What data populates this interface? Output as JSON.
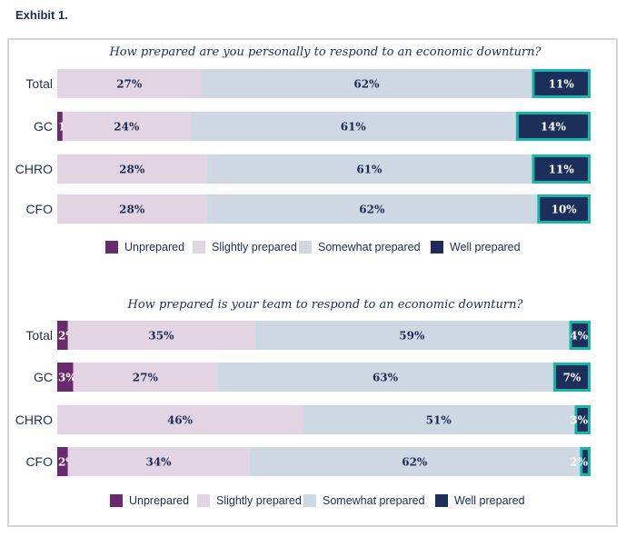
{
  "exhibit_title": "Exhibit 1.",
  "colors": {
    "unprepared": "#6b2a6e",
    "slightly": "#e3d4e4",
    "somewhat": "#cdd8e2",
    "well": "#1b2f5a",
    "well_outline": "#19b5ab",
    "text_dark": "#1c2d54",
    "text_light": "#ffffff"
  },
  "chart_data": [
    {
      "type": "bar",
      "orientation": "horizontal",
      "stacked": true,
      "title": "How prepared are you personally to respond to an economic downturn?",
      "categories": [
        "Total",
        "GC",
        "CHRO",
        "CFO"
      ],
      "series": [
        {
          "name": "Unprepared",
          "key": "unprepared",
          "values": [
            0,
            1,
            0,
            0
          ]
        },
        {
          "name": "Slightly prepared",
          "key": "slightly",
          "values": [
            27,
            24,
            28,
            28
          ]
        },
        {
          "name": "Somewhat prepared",
          "key": "somewhat",
          "values": [
            62,
            61,
            61,
            62
          ]
        },
        {
          "name": "Well prepared",
          "key": "well",
          "values": [
            11,
            14,
            11,
            10
          ]
        }
      ],
      "xlabel": "",
      "ylabel": "",
      "xlim": [
        0,
        100
      ],
      "grid": false,
      "legend": "bottom"
    },
    {
      "type": "bar",
      "orientation": "horizontal",
      "stacked": true,
      "title": "How prepared is your team to respond to an economic downturn?",
      "categories": [
        "Total",
        "GC",
        "CHRO",
        "CFO"
      ],
      "series": [
        {
          "name": "Unprepared",
          "key": "unprepared",
          "values": [
            2,
            3,
            0,
            2
          ]
        },
        {
          "name": "Slightly prepared",
          "key": "slightly",
          "values": [
            35,
            27,
            46,
            34
          ]
        },
        {
          "name": "Somewhat prepared",
          "key": "somewhat",
          "values": [
            59,
            63,
            51,
            62
          ]
        },
        {
          "name": "Well prepared",
          "key": "well",
          "values": [
            4,
            7,
            3,
            2
          ]
        }
      ],
      "xlabel": "",
      "ylabel": "",
      "xlim": [
        0,
        100
      ],
      "grid": false,
      "legend": "bottom"
    }
  ]
}
